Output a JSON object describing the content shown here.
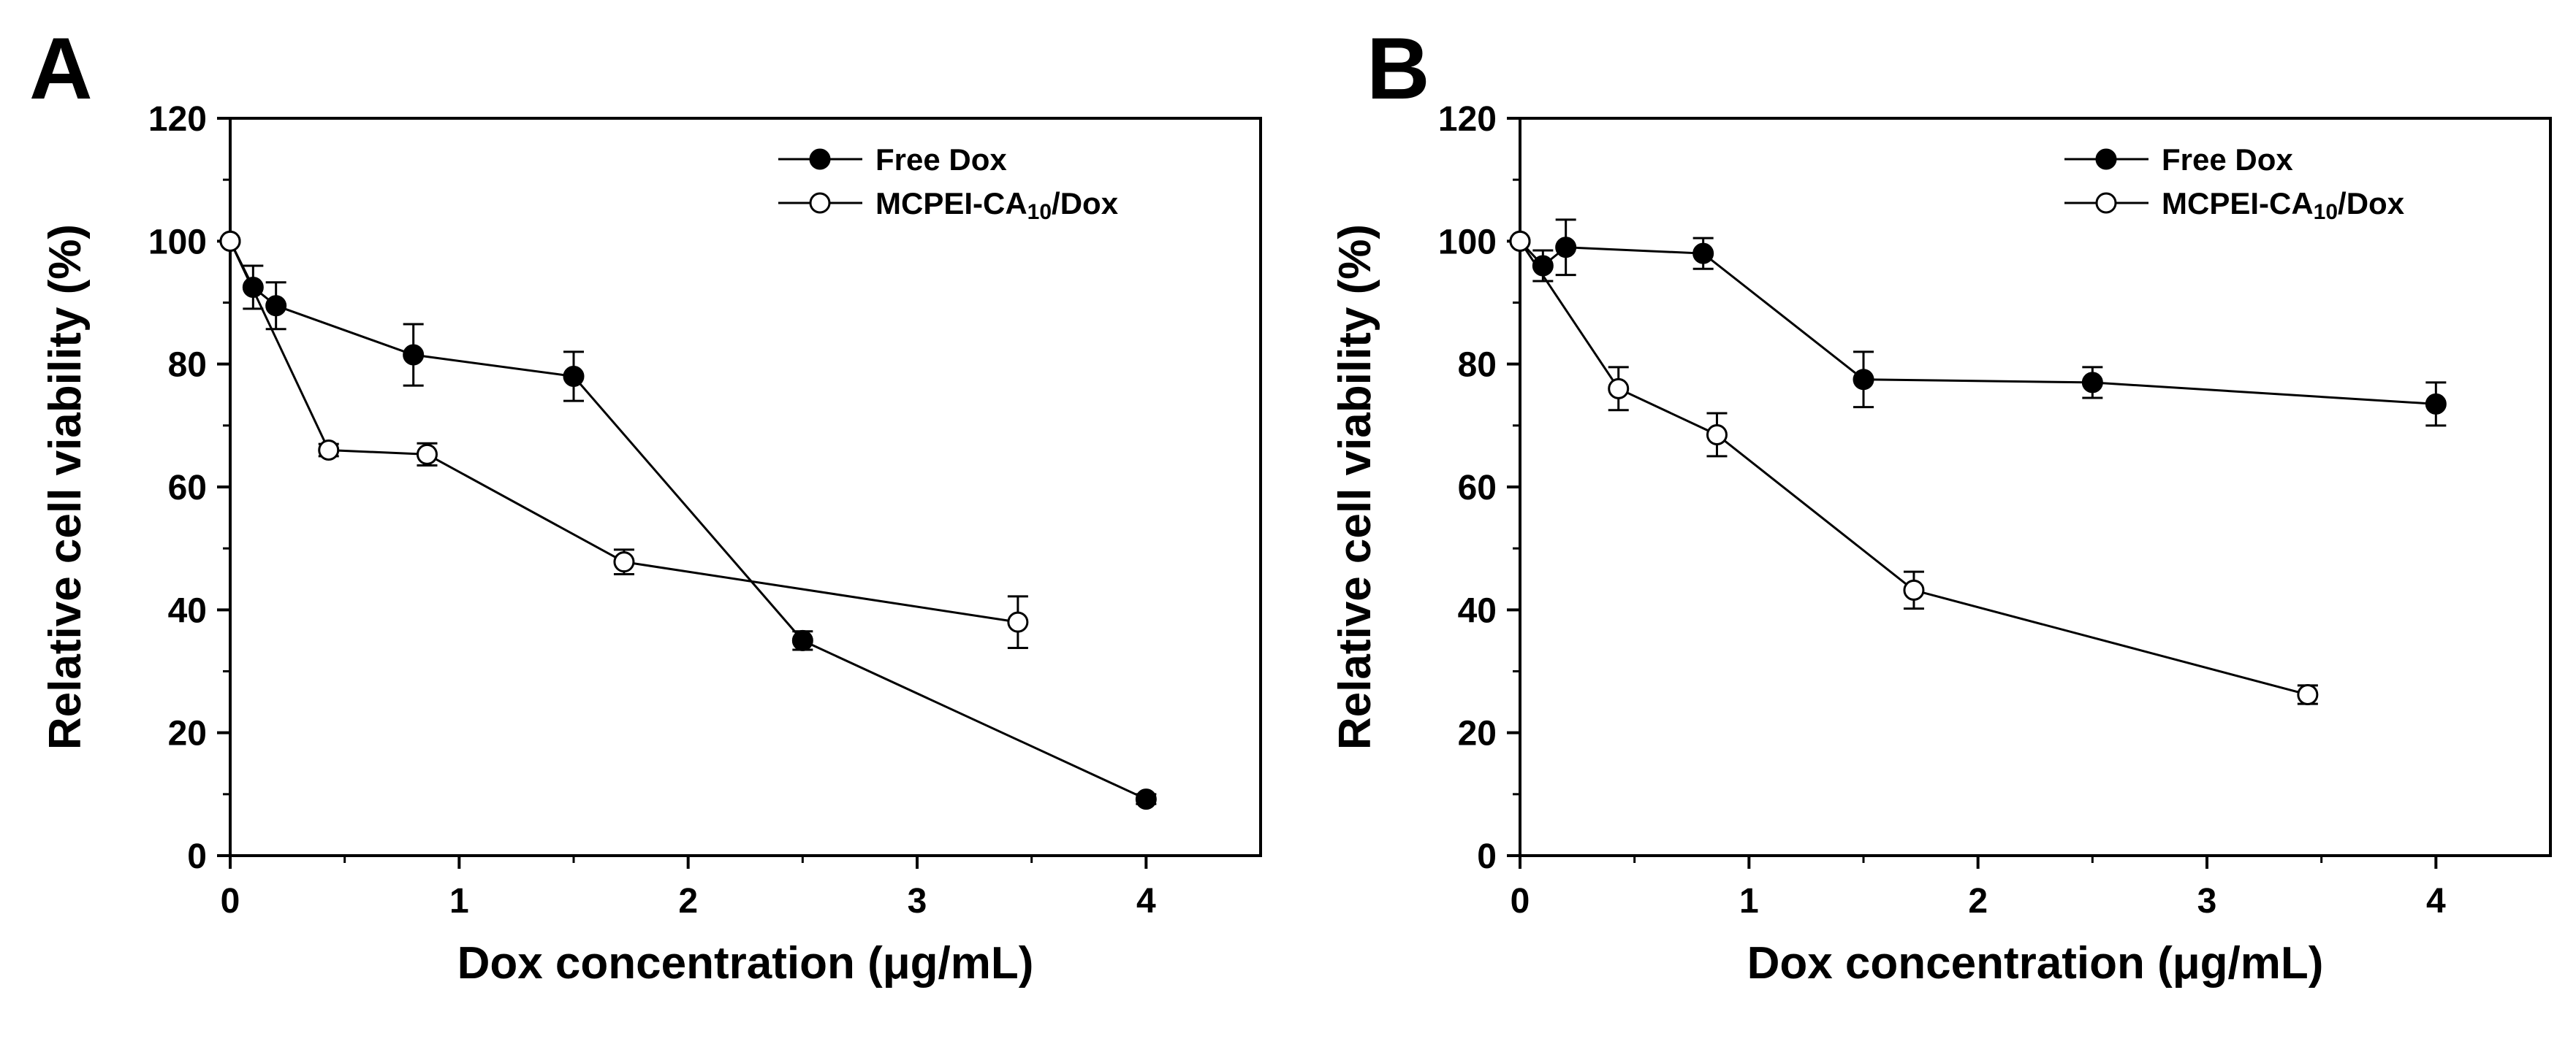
{
  "chart_data": [
    {
      "panel_label": "A",
      "type": "line",
      "xlabel": "Dox concentration (μg/mL)",
      "ylabel": "Relative cell viability (%)",
      "xlim": [
        0,
        4.5
      ],
      "ylim": [
        0,
        120
      ],
      "x_ticks": [
        0,
        1,
        2,
        3,
        4
      ],
      "y_ticks": [
        0,
        20,
        40,
        60,
        80,
        100,
        120
      ],
      "legend_position": "top-right",
      "series": [
        {
          "name": "Free Dox",
          "name_parts": [
            "Free Dox"
          ],
          "marker": "filled-circle",
          "x": [
            0,
            0.1,
            0.2,
            0.8,
            1.5,
            2.5,
            4.0
          ],
          "y": [
            100,
            92.5,
            89.5,
            81.5,
            78,
            35,
            9.2
          ],
          "err": [
            0,
            3.5,
            3.8,
            5,
            4,
            1.5,
            0.8
          ]
        },
        {
          "name": "MCPEI-CA10/Dox",
          "name_parts": [
            "MCPEI-CA",
            "10",
            "/Dox"
          ],
          "marker": "open-circle",
          "x": [
            0,
            0.43,
            0.86,
            1.72,
            3.44
          ],
          "y": [
            100,
            66,
            65.3,
            47.8,
            38
          ],
          "err": [
            0,
            1,
            1.8,
            2,
            4.2
          ]
        }
      ]
    },
    {
      "panel_label": "B",
      "type": "line",
      "xlabel": "Dox concentration (μg/mL)",
      "ylabel": "Relative cell viability (%)",
      "xlim": [
        0,
        4.5
      ],
      "ylim": [
        0,
        120
      ],
      "x_ticks": [
        0,
        1,
        2,
        3,
        4
      ],
      "y_ticks": [
        0,
        20,
        40,
        60,
        80,
        100,
        120
      ],
      "legend_position": "top-right",
      "series": [
        {
          "name": "Free Dox",
          "name_parts": [
            "Free Dox"
          ],
          "marker": "filled-circle",
          "x": [
            0,
            0.1,
            0.2,
            0.8,
            1.5,
            2.5,
            4.0
          ],
          "y": [
            100,
            96,
            99,
            98,
            77.5,
            77,
            73.5
          ],
          "err": [
            0,
            2.5,
            4.5,
            2.5,
            4.5,
            2.5,
            3.5
          ]
        },
        {
          "name": "MCPEI-CA10/Dox",
          "name_parts": [
            "MCPEI-CA",
            "10",
            "/Dox"
          ],
          "marker": "open-circle",
          "x": [
            0,
            0.43,
            0.86,
            1.72,
            3.44
          ],
          "y": [
            100,
            76,
            68.5,
            43.2,
            26.2
          ],
          "err": [
            0,
            3.5,
            3.5,
            3,
            1.5
          ]
        }
      ]
    }
  ]
}
